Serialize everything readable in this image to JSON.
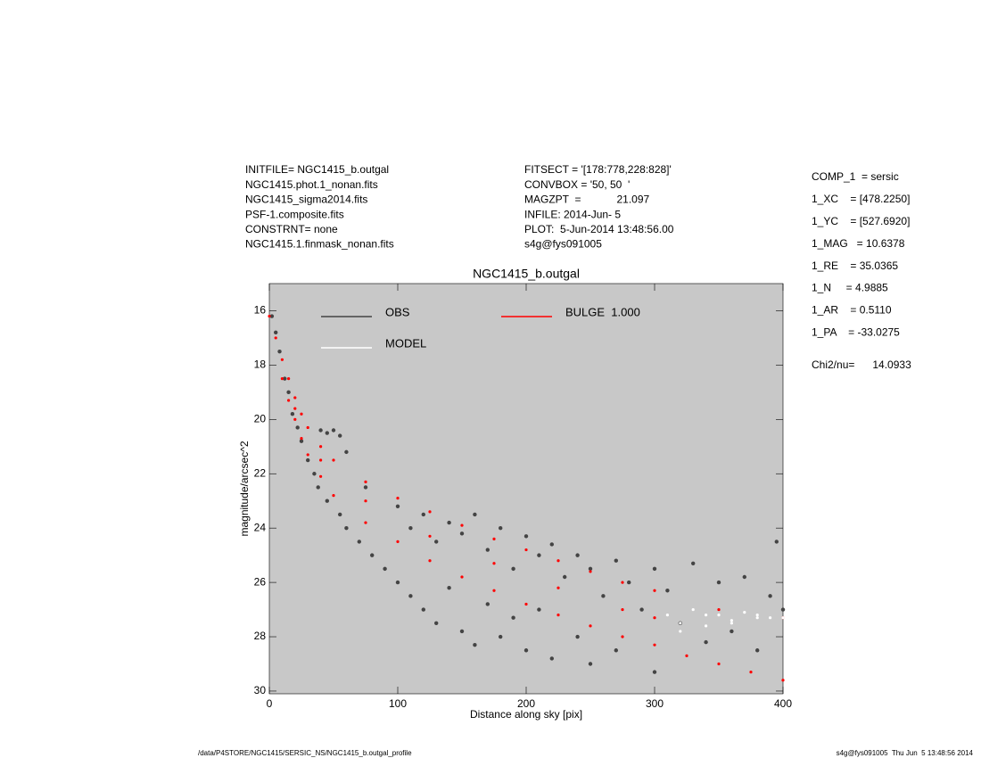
{
  "header": {
    "left": [
      "INITFILE= NGC1415_b.outgal",
      "NGC1415.phot.1_nonan.fits",
      "NGC1415_sigma2014.fits",
      "PSF-1.composite.fits",
      "CONSTRNT= none",
      "NGC1415.1.finmask_nonan.fits"
    ],
    "middle": [
      "FITSECT = '[178:778,228:828]'",
      "CONVBOX = '50, 50  '",
      "MAGZPT  =            21.097",
      "INFILE: 2014-Jun- 5",
      "PLOT:  5-Jun-2014 13:48:56.00",
      "s4g@fys091005"
    ],
    "right": [
      "COMP_1  = sersic",
      "1_XC    = [478.2250]",
      "1_YC    = [527.6920]",
      "1_MAG   = 10.6378",
      "1_RE    = 35.0365",
      "1_N     = 4.9885",
      "1_AR    = 0.5110",
      "1_PA    = -33.0275",
      "Chi2/nu=      14.0933"
    ]
  },
  "footer": {
    "left": "/data/P4STORE/NGC1415/SERSIC_NS/NGC1415_b.outgal_profile",
    "right": "s4g@fys091005  Thu Jun  5 13:48:56 2014"
  },
  "chart_data": {
    "type": "scatter",
    "title": "NGC1415_b.outgal",
    "xlabel": "Distance along sky [pix]",
    "ylabel": "magnitude/arcsec^2",
    "xlim": [
      0,
      400
    ],
    "ylim": [
      30.1,
      15.0
    ],
    "xticks": [
      0,
      100,
      200,
      300,
      400
    ],
    "yticks": [
      16,
      18,
      20,
      22,
      24,
      26,
      28,
      30
    ],
    "background": "#c8c8c8",
    "series": [
      {
        "name": "OBS",
        "color": "#444444",
        "x": [
          2,
          5,
          8,
          12,
          15,
          18,
          22,
          25,
          30,
          35,
          40,
          45,
          50,
          55,
          60,
          38,
          45,
          55,
          60,
          70,
          75,
          80,
          90,
          100,
          100,
          110,
          110,
          120,
          120,
          130,
          130,
          140,
          140,
          150,
          150,
          160,
          160,
          170,
          170,
          180,
          180,
          190,
          190,
          200,
          200,
          210,
          210,
          220,
          220,
          230,
          240,
          240,
          250,
          250,
          260,
          270,
          270,
          280,
          290,
          300,
          300,
          310,
          320,
          330,
          340,
          350,
          360,
          370,
          380,
          390,
          400,
          395
        ],
        "values": [
          16.2,
          16.8,
          17.5,
          18.5,
          19.0,
          19.8,
          20.3,
          20.8,
          21.5,
          22.0,
          20.4,
          20.5,
          20.4,
          20.6,
          21.2,
          22.5,
          23.0,
          23.5,
          24.0,
          24.5,
          22.5,
          25.0,
          25.5,
          23.2,
          26.0,
          24.0,
          26.5,
          23.5,
          27.0,
          24.5,
          27.5,
          23.8,
          26.2,
          24.2,
          27.8,
          23.5,
          28.3,
          24.8,
          26.8,
          24.0,
          28.0,
          25.5,
          27.3,
          24.3,
          28.5,
          25.0,
          27.0,
          24.6,
          28.8,
          25.8,
          25.0,
          28.0,
          25.5,
          29.0,
          26.5,
          25.2,
          28.5,
          26.0,
          27.0,
          25.5,
          29.3,
          26.3,
          27.5,
          25.3,
          28.2,
          26.0,
          27.8,
          25.8,
          28.5,
          26.5,
          27.0,
          24.5
        ]
      },
      {
        "name": "BULGE  1.000",
        "color": "#ff0000",
        "x": [
          0,
          5,
          10,
          15,
          20,
          25,
          30,
          40,
          50,
          75,
          100,
          125,
          150,
          175,
          200,
          225,
          250,
          275,
          300,
          350,
          400,
          10,
          15,
          20,
          25,
          30,
          40,
          50,
          75,
          100,
          125,
          150,
          175,
          200,
          225,
          250,
          275,
          300,
          325,
          350,
          375,
          400,
          20,
          40,
          75,
          125,
          175,
          225,
          275,
          300
        ],
        "values": [
          16.2,
          17.0,
          17.8,
          18.5,
          19.2,
          19.8,
          20.3,
          21.0,
          21.5,
          22.3,
          22.9,
          23.4,
          23.9,
          24.4,
          24.8,
          25.2,
          25.6,
          26.0,
          26.3,
          27.0,
          27.3,
          18.5,
          19.3,
          20.0,
          20.7,
          21.3,
          22.1,
          22.8,
          23.8,
          24.5,
          25.2,
          25.8,
          26.3,
          26.8,
          27.2,
          27.6,
          28.0,
          28.3,
          28.7,
          29.0,
          29.3,
          29.6,
          19.6,
          21.5,
          23.0,
          24.3,
          25.3,
          26.2,
          27.0,
          27.3
        ]
      },
      {
        "name": "MODEL",
        "color": "#ffffff",
        "x": [
          310,
          320,
          330,
          340,
          350,
          360,
          370,
          380,
          390,
          400,
          320,
          340,
          360,
          380
        ],
        "values": [
          27.2,
          27.8,
          27.0,
          27.6,
          27.2,
          27.5,
          27.1,
          27.3,
          27.3,
          27.3,
          27.5,
          27.2,
          27.4,
          27.2
        ]
      }
    ]
  }
}
